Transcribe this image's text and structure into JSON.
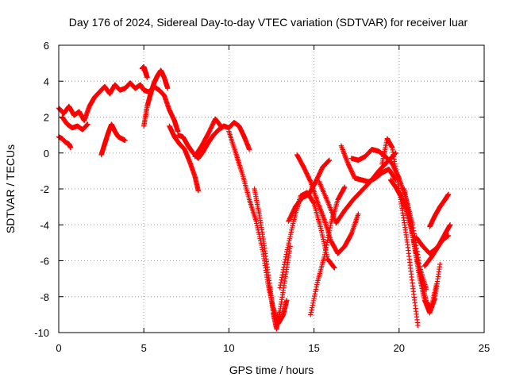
{
  "chart_data": {
    "type": "scatter",
    "title": "Day 176 of 2024, Sidereal Day-to-day VTEC variation (SDTVAR) for receiver luar",
    "xlabel": "GPS time / hours",
    "ylabel": "SDTVAR / TECUs",
    "xlim": [
      0,
      25
    ],
    "ylim": [
      -10,
      6
    ],
    "xticks": [
      0,
      5,
      10,
      15,
      20,
      25
    ],
    "yticks": [
      -10,
      -8,
      -6,
      -4,
      -2,
      0,
      2,
      4,
      6
    ],
    "grid": true,
    "marker": "+",
    "color": "#ff0000",
    "series": [
      {
        "x": [
          0.0,
          0.3,
          0.6,
          0.9,
          1.2,
          1.5,
          1.8,
          2.1,
          2.4,
          2.7,
          3.0,
          3.3,
          3.6,
          3.9,
          4.2,
          4.5,
          4.8,
          5.0,
          5.3,
          5.6,
          5.9,
          6.2,
          6.5,
          6.8,
          7.0
        ],
        "y": [
          2.5,
          2.2,
          2.6,
          2.1,
          2.3,
          1.8,
          2.6,
          3.1,
          3.4,
          3.7,
          3.3,
          3.8,
          3.5,
          3.6,
          3.9,
          3.6,
          3.8,
          3.5,
          3.4,
          3.7,
          3.5,
          3.2,
          2.4,
          1.8,
          1.2
        ]
      },
      {
        "x": [
          0.0,
          0.2,
          0.4,
          0.6,
          0.7
        ],
        "y": [
          0.9,
          0.8,
          0.6,
          0.5,
          0.3
        ]
      },
      {
        "x": [
          0.2,
          0.5,
          0.8,
          1.1,
          1.4,
          1.7
        ],
        "y": [
          2.0,
          1.6,
          1.4,
          1.5,
          1.3,
          1.6
        ]
      },
      {
        "x": [
          2.5,
          2.7,
          2.9,
          3.1,
          3.3,
          3.5,
          3.7,
          3.9
        ],
        "y": [
          -0.1,
          0.5,
          1.1,
          1.6,
          1.2,
          0.9,
          0.8,
          0.7
        ]
      },
      {
        "x": [
          5.0,
          5.2,
          5.4,
          5.6,
          5.8,
          6.0,
          6.2,
          6.4
        ],
        "y": [
          1.5,
          2.6,
          3.3,
          3.9,
          4.3,
          4.6,
          4.2,
          3.6
        ]
      },
      {
        "x": [
          4.9,
          5.0,
          5.1,
          5.2
        ],
        "y": [
          4.7,
          4.8,
          4.5,
          4.2
        ]
      },
      {
        "x": [
          6.5,
          6.8,
          7.1,
          7.4,
          7.7,
          8.0,
          8.2
        ],
        "y": [
          1.5,
          0.9,
          0.5,
          0.2,
          -0.5,
          -1.3,
          -2.1
        ]
      },
      {
        "x": [
          7.0,
          7.3,
          7.6,
          7.9,
          8.2,
          8.5,
          8.8,
          9.1,
          9.4,
          9.7,
          10.0,
          10.3,
          10.6,
          10.9,
          11.2
        ],
        "y": [
          1.0,
          0.9,
          0.4,
          0.0,
          -0.3,
          0.1,
          0.6,
          1.0,
          1.3,
          1.5,
          1.4,
          1.7,
          1.5,
          0.9,
          0.2
        ]
      },
      {
        "x": [
          8.0,
          8.4,
          8.8,
          9.2,
          9.6
        ],
        "y": [
          -0.2,
          0.4,
          1.1,
          1.9,
          1.4
        ]
      },
      {
        "x": [
          10.0,
          10.4,
          10.8,
          11.2,
          11.6,
          12.0,
          12.3,
          12.6,
          12.9,
          13.2,
          13.4
        ],
        "y": [
          1.2,
          0.0,
          -1.2,
          -2.6,
          -3.8,
          -5.5,
          -7.3,
          -8.6,
          -9.5,
          -9.0,
          -8.2
        ]
      },
      {
        "x": [
          11.5,
          11.8,
          12.1,
          12.4,
          12.6,
          12.8,
          13.0,
          13.3,
          13.6
        ],
        "y": [
          -2.0,
          -3.5,
          -5.3,
          -7.4,
          -8.9,
          -9.8,
          -8.8,
          -7.0,
          -5.2
        ]
      },
      {
        "x": [
          13.0,
          13.4,
          13.8,
          14.2,
          14.6,
          15.0,
          15.4,
          15.8,
          16.2
        ],
        "y": [
          -7.5,
          -5.5,
          -3.8,
          -2.4,
          -2.2,
          -2.8,
          -4.2,
          -5.9,
          -6.4
        ]
      },
      {
        "x": [
          13.5,
          13.9,
          14.3,
          14.7,
          15.1,
          15.5,
          15.9
        ],
        "y": [
          -3.8,
          -3.0,
          -2.5,
          -2.3,
          -1.6,
          -0.8,
          -0.4
        ]
      },
      {
        "x": [
          14.0,
          14.4,
          14.8,
          15.2,
          15.6,
          16.0,
          16.4,
          16.8,
          17.2,
          17.6
        ],
        "y": [
          -0.1,
          -0.8,
          -1.6,
          -2.7,
          -3.7,
          -4.9,
          -5.6,
          -5.2,
          -4.5,
          -3.4
        ]
      },
      {
        "x": [
          14.8,
          15.2,
          15.6,
          16.0,
          16.4,
          16.8
        ],
        "y": [
          -9.0,
          -7.2,
          -5.8,
          -3.9,
          -2.6,
          -1.9
        ]
      },
      {
        "x": [
          15.3,
          15.8,
          16.3,
          16.8,
          17.3,
          17.8,
          18.3,
          18.8,
          19.3,
          19.8
        ],
        "y": [
          -1.6,
          -2.7,
          -3.9,
          -3.2,
          -2.6,
          -2.1,
          -1.6,
          -1.0,
          -0.5,
          0.0
        ]
      },
      {
        "x": [
          16.6,
          17.0,
          17.4,
          17.8,
          18.2,
          18.6,
          19.0,
          19.4,
          19.8
        ],
        "y": [
          0.4,
          -0.6,
          -1.4,
          -1.5,
          -1.6,
          -1.4,
          -1.1,
          -0.9,
          -1.5
        ]
      },
      {
        "x": [
          17.2,
          17.6,
          18.0,
          18.4,
          18.8,
          19.2,
          19.6,
          20.0,
          20.4,
          20.8,
          21.2,
          21.6
        ],
        "y": [
          -0.3,
          -0.4,
          -0.2,
          0.2,
          0.1,
          -0.2,
          -0.6,
          -1.4,
          -2.5,
          -4.0,
          -6.3,
          -7.6
        ]
      },
      {
        "x": [
          19.0,
          19.3,
          19.6,
          19.9,
          20.2,
          20.5,
          20.8,
          21.1
        ],
        "y": [
          -0.6,
          0.8,
          0.3,
          -1.5,
          -3.2,
          -5.1,
          -7.4,
          -9.6
        ]
      },
      {
        "x": [
          19.5,
          19.8,
          20.1,
          20.4,
          20.7,
          21.0,
          21.3,
          21.6,
          21.9,
          22.2
        ],
        "y": [
          -1.5,
          -1.9,
          -2.4,
          -3.1,
          -4.2,
          -5.6,
          -7.0,
          -8.3,
          -8.6,
          -7.3
        ]
      },
      {
        "x": [
          20.3,
          20.6,
          20.9,
          21.2,
          21.5,
          21.8,
          22.1,
          22.4
        ],
        "y": [
          -2.0,
          -3.5,
          -5.2,
          -6.9,
          -8.2,
          -8.9,
          -8.1,
          -6.2
        ]
      },
      {
        "x": [
          21.0,
          21.4,
          21.8,
          22.2,
          22.6,
          22.9
        ],
        "y": [
          -4.7,
          -5.2,
          -5.6,
          -5.3,
          -4.8,
          -4.6
        ]
      },
      {
        "x": [
          21.8,
          22.1,
          22.4,
          22.7,
          22.9
        ],
        "y": [
          -4.1,
          -3.5,
          -3.0,
          -2.6,
          -2.3
        ]
      },
      {
        "x": [
          21.5,
          21.9,
          22.3,
          22.7,
          23.0
        ],
        "y": [
          -6.3,
          -5.8,
          -5.2,
          -4.5,
          -4.0
        ]
      }
    ]
  }
}
